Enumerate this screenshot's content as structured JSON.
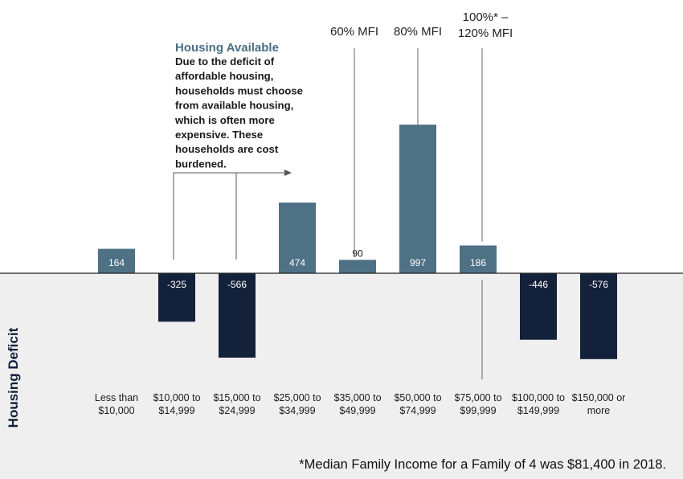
{
  "chart_data": {
    "type": "bar",
    "categories": [
      [
        "Less than",
        "$10,000"
      ],
      [
        "$10,000 to",
        "$14,999"
      ],
      [
        "$15,000 to",
        "$24,999"
      ],
      [
        "$25,000 to",
        "$34,999"
      ],
      [
        "$35,000 to",
        "$49,999"
      ],
      [
        "$50,000 to",
        "$74,999"
      ],
      [
        "$75,000 to",
        "$99,999"
      ],
      [
        "$100,000 to",
        "$149,999"
      ],
      [
        "$150,000 or",
        "more"
      ]
    ],
    "values": [
      164,
      -325,
      -566,
      474,
      90,
      997,
      186,
      -446,
      -576
    ],
    "data_labels": [
      "164",
      "-325",
      "-566",
      "474",
      "90",
      "997",
      "186",
      "-446",
      "-576"
    ],
    "ylim": [
      -1000,
      1100
    ],
    "colors": {
      "positive": "#4e7185",
      "negative": "#14213a",
      "deficit_band": "#efefef",
      "positive_label": "#ffffff",
      "negative_label": "#ffffff",
      "outside_label": "#1a1a1a"
    },
    "side_label": "Housing Deficit",
    "annotation": {
      "title": "Housing Available",
      "lines": [
        "Due to the deficit of",
        "affordable housing,",
        "households must choose",
        "from available housing,",
        "which is often more",
        "expensive. These",
        "households are cost",
        "burdened."
      ]
    },
    "mfi_markers": [
      {
        "label_lines": [
          "60% MFI"
        ],
        "at_category": 4
      },
      {
        "label_lines": [
          "80% MFI"
        ],
        "at_category": 5
      },
      {
        "label_lines": [
          "100%* –",
          "120% MFI"
        ],
        "at_category": 6
      }
    ],
    "footnote": "*Median Family Income for a Family of 4 was $81,400 in 2018."
  }
}
